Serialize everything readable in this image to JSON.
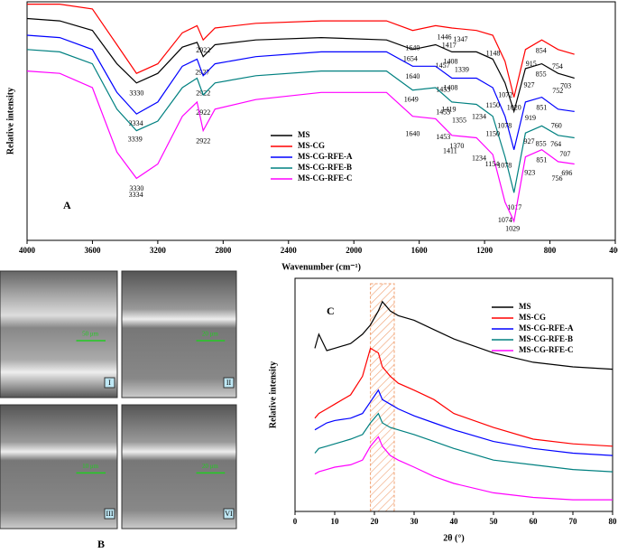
{
  "chart_data": [
    {
      "type": "line",
      "panel_label": "A",
      "x_label": "Wavenumber (cm⁻¹)",
      "y_label": "Relative intensity",
      "xlim": [
        4000,
        400
      ],
      "xticks": [
        4000,
        3600,
        3200,
        2800,
        2400,
        2000,
        1600,
        1200,
        800,
        400
      ],
      "ylim": [
        0,
        100
      ],
      "x": [
        4000,
        3800,
        3600,
        3450,
        3330,
        3200,
        3050,
        2960,
        2922,
        2850,
        2600,
        2200,
        1800,
        1640,
        1500,
        1400,
        1250,
        1150,
        1075,
        1020,
        950,
        850,
        750,
        650
      ],
      "series": [
        {
          "name": "MS",
          "color": "#000000",
          "values": [
            93,
            92,
            88,
            74,
            66,
            70,
            81,
            83,
            77,
            82,
            84,
            85,
            84,
            80,
            82,
            79,
            79,
            76,
            66,
            54,
            72,
            74,
            70,
            68
          ],
          "peaks": [
            3330,
            2927,
            1654,
            1457,
            1408,
            1339,
            1072,
            927,
            855,
            752,
            703
          ]
        },
        {
          "name": "MS-CG",
          "color": "#ff0000",
          "values": [
            99,
            99,
            97,
            82,
            70,
            74,
            87,
            90,
            84,
            89,
            91,
            92,
            92,
            88,
            90,
            89,
            88,
            86,
            75,
            60,
            80,
            84,
            80,
            78
          ],
          "peaks": [
            2922,
            1640,
            1446,
            1417,
            1347,
            1148,
            1020,
            915,
            854,
            754
          ]
        },
        {
          "name": "MS-CG-RFE-A",
          "color": "#0000ff",
          "values": [
            86,
            85,
            80,
            62,
            53,
            58,
            73,
            76,
            69,
            74,
            77,
            79,
            79,
            73,
            73,
            68,
            68,
            64,
            52,
            38,
            58,
            60,
            55,
            54
          ],
          "peaks": [
            3334,
            2922,
            1640,
            1453,
            1408,
            1150,
            1078,
            919,
            851,
            760
          ]
        },
        {
          "name": "MS-CG-RFE-B",
          "color": "#008080",
          "values": [
            80,
            79,
            74,
            55,
            46,
            50,
            64,
            68,
            61,
            66,
            69,
            71,
            71,
            63,
            64,
            58,
            57,
            52,
            35,
            20,
            45,
            48,
            44,
            43
          ],
          "peaks": [
            3339,
            2922,
            1649,
            1453,
            1419,
            1355,
            1234,
            1150,
            1078,
            1017,
            927,
            855,
            764,
            707
          ]
        },
        {
          "name": "MS-CG-RFE-C",
          "color": "#ff00ff",
          "values": [
            71,
            70,
            64,
            37,
            26,
            32,
            52,
            58,
            46,
            55,
            59,
            62,
            62,
            52,
            51,
            44,
            43,
            36,
            16,
            8,
            35,
            38,
            33,
            32
          ],
          "peaks": [
            3330,
            3334,
            2922,
            1640,
            1453,
            1411,
            1370,
            1234,
            1154,
            1074,
            1029,
            923,
            851,
            756,
            696
          ]
        }
      ]
    },
    {
      "type": "line",
      "panel_label": "C",
      "x_label": "2θ (°)",
      "y_label": "Relative intensity",
      "xlim": [
        0,
        80
      ],
      "xticks": [
        0,
        10,
        20,
        30,
        40,
        50,
        60,
        70,
        80
      ],
      "ylim": [
        0,
        100
      ],
      "band": [
        19,
        25
      ],
      "x": [
        5,
        6,
        8,
        10,
        14,
        17,
        19,
        21,
        22,
        24,
        26,
        30,
        35,
        40,
        50,
        60,
        70,
        80
      ],
      "series": [
        {
          "name": "MS",
          "color": "#000000",
          "values": [
            70,
            76,
            69,
            70,
            72,
            76,
            80,
            86,
            90,
            86,
            84,
            82,
            78,
            74,
            68,
            64,
            62,
            61
          ]
        },
        {
          "name": "MS-CG",
          "color": "#ff0000",
          "values": [
            40,
            42,
            44,
            46,
            50,
            58,
            70,
            68,
            62,
            58,
            55,
            52,
            48,
            42,
            36,
            31,
            29,
            28
          ]
        },
        {
          "name": "MS-CG-RFE-A",
          "color": "#0000ff",
          "values": [
            35,
            36,
            38,
            39,
            40,
            42,
            47,
            52,
            48,
            46,
            44,
            41,
            38,
            35,
            30,
            27,
            25,
            24
          ]
        },
        {
          "name": "MS-CG-RFE-B",
          "color": "#008080",
          "values": [
            25,
            27,
            28,
            29,
            31,
            33,
            38,
            42,
            38,
            36,
            35,
            33,
            30,
            27,
            22,
            20,
            18,
            17
          ]
        },
        {
          "name": "MS-CG-RFE-C",
          "color": "#ff00ff",
          "values": [
            16,
            17,
            18,
            19,
            20,
            22,
            28,
            32,
            28,
            24,
            22,
            19,
            15,
            12,
            8,
            6,
            5,
            5
          ]
        }
      ]
    }
  ],
  "sem_panel": {
    "label": "B",
    "images": [
      {
        "tag": "I",
        "scale": "50 μm"
      },
      {
        "tag": "II",
        "scale": "20 μm"
      },
      {
        "tag": "III",
        "scale": "10 μm"
      },
      {
        "tag": "VI",
        "scale": "20 μm"
      }
    ]
  }
}
